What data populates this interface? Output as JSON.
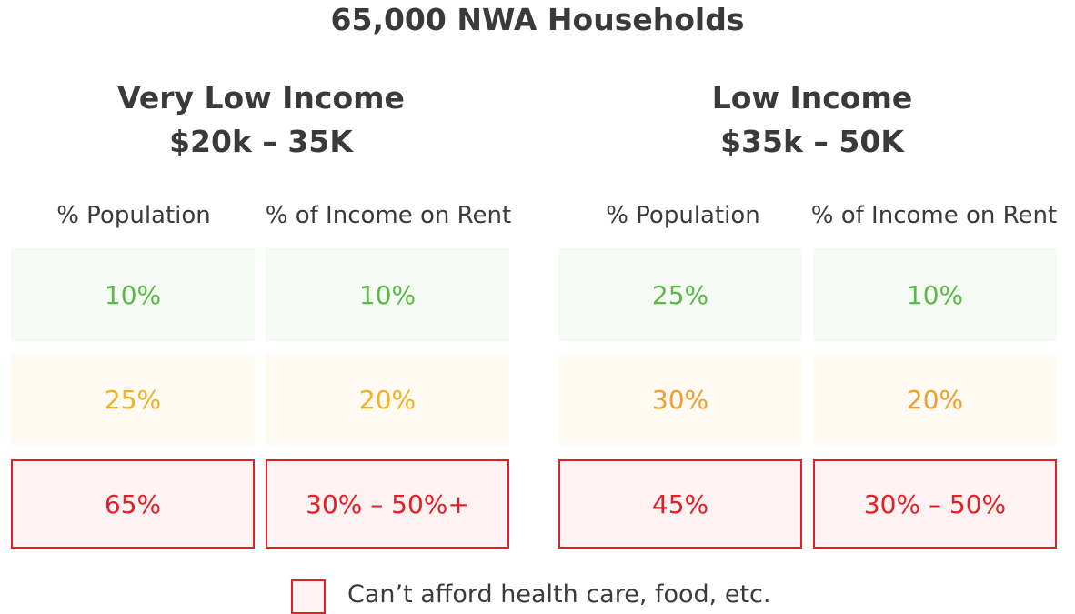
{
  "colors": {
    "green_bg": "#f6faf5",
    "green_text": "#5cb848",
    "yellow_bg": "#fffbf2",
    "yellow_text": "#f2b023",
    "orange_text": "#f29d2d",
    "red_bg": "#fff2f2",
    "red_text": "#e41e26"
  },
  "chart_data": {
    "type": "table",
    "title": "65,000 NWA Households",
    "groups": [
      {
        "title_line1": "Very Low Income",
        "title_line2": "$20k – 35K",
        "columns": [
          "% Population",
          "% of Income on Rent"
        ],
        "rows": [
          [
            "10%",
            "10%"
          ],
          [
            "25%",
            "20%"
          ],
          [
            "65%",
            "30% – 50%+"
          ]
        ]
      },
      {
        "title_line1": "Low Income",
        "title_line2": "$35k – 50K",
        "columns": [
          "% Population",
          "% of Income on Rent"
        ],
        "rows": [
          [
            "25%",
            "10%"
          ],
          [
            "30%",
            "20%"
          ],
          [
            "45%",
            "30% – 50%"
          ]
        ]
      }
    ],
    "legend": "Can’t afford health care, food, etc."
  }
}
